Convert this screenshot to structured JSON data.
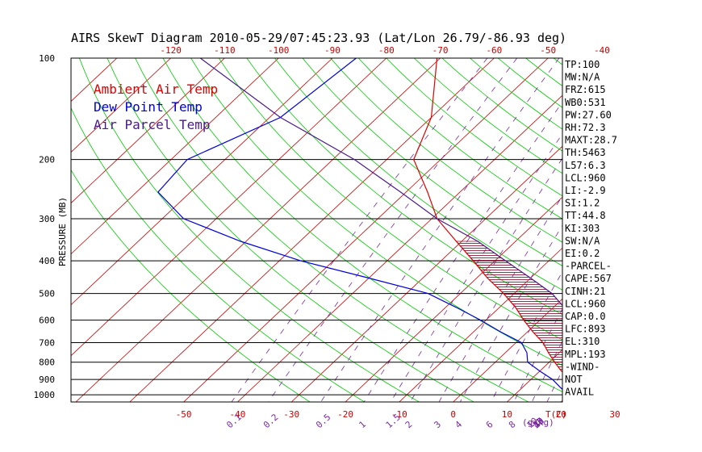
{
  "chart_data": {
    "type": "line",
    "title": "AIRS SkewT Diagram 2010-05-29/07:45:23.93 (Lat/Lon 26.79/-86.93 deg)",
    "ylabel": "PRESSURE (MB)",
    "xlabel_bottom_unit": "T(C)",
    "mixing_ratio_unit": "(g/kg)",
    "pressure_ticks": [
      100,
      200,
      300,
      400,
      500,
      600,
      700,
      800,
      900,
      1000
    ],
    "temp_ticks_top": [
      -120,
      -110,
      -100,
      -90,
      -80,
      -70,
      -60,
      -50,
      -40
    ],
    "temp_ticks_bottom": [
      -50,
      -40,
      -30,
      -20,
      -10,
      0,
      10,
      20,
      30
    ],
    "mixing_ratio_labels": [
      "0.1",
      "0.2",
      "0.5",
      "1",
      "1.5",
      "2",
      "3",
      "4",
      "6",
      "8",
      "10",
      "12",
      "15",
      "20",
      "25",
      "30",
      "40"
    ],
    "series": [
      {
        "name": "Ambient Air Temp",
        "color": "#e00000",
        "p": [
          100,
          150,
          200,
          250,
          300,
          350,
          400,
          450,
          500,
          550,
          600,
          650,
          700,
          750,
          800,
          850,
          900,
          950,
          1000
        ],
        "t": [
          -70.6,
          -60,
          -55,
          -46,
          -39,
          -31,
          -24,
          -18,
          -12,
          -7,
          -3,
          1,
          5,
          8,
          11,
          14,
          18,
          20.5,
          24
        ]
      },
      {
        "name": "Dew Point Temp",
        "color": "#0000dd",
        "p": [
          100,
          150,
          200,
          250,
          300,
          350,
          400,
          450,
          500,
          550,
          600,
          650,
          700,
          750,
          800,
          850,
          900,
          950,
          1000
        ],
        "t": [
          -85.6,
          -88,
          -97,
          -96,
          -86,
          -71,
          -56,
          -40,
          -26,
          -18,
          -11,
          -5,
          1,
          4,
          6,
          10,
          14,
          17,
          20
        ]
      },
      {
        "name": "Air Parcel Temp",
        "color": "#4a1a8a",
        "p": [
          100,
          150,
          200,
          250,
          300,
          350,
          400,
          450,
          500,
          550,
          600,
          650,
          700,
          750,
          800,
          850,
          900,
          950,
          1000
        ],
        "t": [
          -114.5,
          -88,
          -66,
          -51,
          -39,
          -27,
          -18,
          -10,
          -3,
          2,
          6,
          9,
          12,
          14,
          15,
          17,
          18,
          20.5,
          24
        ]
      }
    ]
  },
  "legend": [
    "Ambient Air Temp",
    "Dew Point Temp",
    "Air Parcel Temp"
  ],
  "indices": [
    "TP:100",
    "MW:N/A",
    "FRZ:615",
    "WB0:531",
    "PW:27.60",
    "RH:72.3",
    "MAXT:28.7",
    "TH:5463",
    "L57:6.3",
    "LCL:960",
    "LI:-2.9",
    "SI:1.2",
    "TT:44.8",
    "KI:303",
    "SW:N/A",
    "EI:0.2",
    "-PARCEL-",
    "CAPE:567",
    "CINH:21",
    "LCL:960",
    "CAP:0.0",
    "LFC:893",
    "EL:310",
    "MPL:193",
    "-WIND-",
    "NOT",
    "AVAIL"
  ],
  "colors": {
    "temp": "#e00000",
    "dewpoint": "#0000dd",
    "parcel": "#4a1a8a",
    "dry_adiabat": "#00cc00",
    "isotherm": "#cc0000",
    "mixing": "#7a2aa0",
    "frame": "#000000"
  }
}
